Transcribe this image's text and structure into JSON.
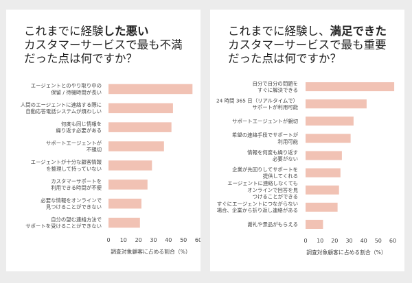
{
  "chart_data": [
    {
      "type": "bar",
      "orientation": "horizontal",
      "title_parts": [
        {
          "text": "これまでに経験",
          "bold": false
        },
        {
          "text": "した悪い",
          "bold": true
        },
        {
          "text": "カスタマーサービスで最も不満だった点は何ですか？",
          "bold": false
        }
      ],
      "categories": [
        [
          "エージェントとのやり取り中の",
          "保留 / 待機時間が長い"
        ],
        [
          "人間のエージェントに連絡する際に",
          "自動応答電話システムが煩わしい"
        ],
        [
          "何度も同じ情報を",
          "繰り返す必要がある"
        ],
        [
          "サポートエージェントが",
          "不親切"
        ],
        [
          "エージェントが十分な顧客情報",
          "を整理して持っていない"
        ],
        [
          "カスタマーサポートを",
          "利用できる時間が不便"
        ],
        [
          "必要な情報をオンラインで",
          "見つけることができない"
        ],
        [
          "自分の望む連絡方法で",
          "サポートを受けることができない"
        ]
      ],
      "values": [
        56,
        43,
        42,
        37,
        29,
        26,
        22,
        21
      ],
      "xlim": [
        0,
        60
      ],
      "xticks": [
        "0",
        "10",
        "20",
        "30",
        "40",
        "50",
        "60"
      ],
      "xlabel": "調査対象顧客に占める割合（%）",
      "bar_color": "#f1c2b4"
    },
    {
      "type": "bar",
      "orientation": "horizontal",
      "title_parts": [
        {
          "text": "これまでに経験し、",
          "bold": false
        },
        {
          "text": "満足できた",
          "bold": true
        },
        {
          "text": "カスタマーサービスで最も重要だった点は何ですか？",
          "bold": false
        }
      ],
      "categories": [
        [
          "自分で自分の問題を",
          "すぐに解決できる"
        ],
        [
          "24 時間 365 日（リアルタイムで）",
          "サポートが利用可能"
        ],
        [
          "サポートエージェントが親切"
        ],
        [
          "希望の連絡手段でサポートが",
          "利用可能"
        ],
        [
          "情報を何度も繰り返す",
          "必要がない"
        ],
        [
          "企業が先回りしてサポートを",
          "提供してくれる"
        ],
        [
          "エージェントに連絡しなくても",
          "オンラインで回答を見",
          "つけることができる"
        ],
        [
          "すぐにエージェントにつながらない",
          "場合、企業から折り返し連絡がある"
        ],
        [
          "謝礼や景品がもらえる"
        ]
      ],
      "values": [
        61,
        42,
        33,
        31,
        25,
        24,
        23,
        22,
        12
      ],
      "xlim": [
        0,
        60
      ],
      "xticks": [
        "0",
        "10",
        "20",
        "30",
        "40",
        "50",
        "60"
      ],
      "xlabel": "調査対象顧客に占める割合（%）",
      "bar_color": "#f1c2b4"
    }
  ]
}
